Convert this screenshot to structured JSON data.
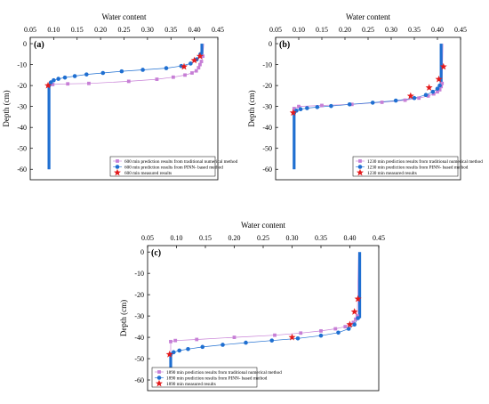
{
  "figure": {
    "background": "#ffffff",
    "colors": {
      "traditional": "#c77fd6",
      "pinn": "#1f6fd1",
      "measured": "#e31a1c",
      "axis": "#000000"
    }
  },
  "chart_data": [
    {
      "type": "scatter",
      "panel_label": "(a)",
      "xlabel": "Water content",
      "ylabel": "Depth (cm)",
      "xlim": [
        0.05,
        0.45
      ],
      "ylim": [
        -65,
        3
      ],
      "xticks": [
        "0.05",
        "0.10",
        "0.15",
        "0.20",
        "0.25",
        "0.30",
        "0.35",
        "0.40",
        "0.45"
      ],
      "yticks": [
        "0",
        "-10",
        "-20",
        "-30",
        "-40",
        "-50",
        "-60"
      ],
      "legend_position": "bottom-right",
      "series": [
        {
          "name": "600 min prediction results from traditional numerical method",
          "marker": "square",
          "x": [
            0.09,
            0.098,
            0.13,
            0.175,
            0.26,
            0.32,
            0.355,
            0.38,
            0.395,
            0.404,
            0.409,
            0.412,
            0.415,
            0.418
          ],
          "y": [
            -20,
            -19.5,
            -19.2,
            -19,
            -18,
            -17,
            -16,
            -15,
            -14,
            -13,
            -11.5,
            -10,
            -8.5,
            -6
          ]
        },
        {
          "name": "600 min prediction results from PINN- based method",
          "marker": "circle",
          "x": [
            0.09,
            0.094,
            0.1,
            0.11,
            0.124,
            0.145,
            0.17,
            0.205,
            0.245,
            0.29,
            0.34,
            0.372,
            0.392,
            0.405,
            0.413
          ],
          "y": [
            -20,
            -18.5,
            -17.5,
            -16.8,
            -16.2,
            -15.5,
            -14.7,
            -14,
            -13.2,
            -12.5,
            -11.7,
            -10.7,
            -9.5,
            -7.5,
            -5
          ]
        },
        {
          "name": "600 min measured results",
          "marker": "star",
          "x": [
            0.088,
            0.378,
            0.4,
            0.412
          ],
          "y": [
            -20,
            -11,
            -8,
            -6
          ]
        }
      ]
    },
    {
      "type": "scatter",
      "panel_label": "(b)",
      "xlabel": "Water content",
      "ylabel": "Depth (cm)",
      "xlim": [
        0.05,
        0.45
      ],
      "ylim": [
        -65,
        3
      ],
      "xticks": [
        "0.05",
        "0.10",
        "0.15",
        "0.20",
        "0.25",
        "0.30",
        "0.35",
        "0.40",
        "0.45"
      ],
      "yticks": [
        "0",
        "-10",
        "-20",
        "-30",
        "-40",
        "-50",
        "-60"
      ],
      "legend_position": "bottom-right",
      "series": [
        {
          "name": "1230 min prediction results from traditional numerical method",
          "marker": "square",
          "x": [
            0.09,
            0.1,
            0.15,
            0.215,
            0.28,
            0.33,
            0.36,
            0.38,
            0.392,
            0.4,
            0.405,
            0.408,
            0.41
          ],
          "y": [
            -31,
            -30,
            -29.5,
            -29,
            -28,
            -27,
            -26,
            -25,
            -24,
            -23,
            -22,
            -20.5,
            -19
          ]
        },
        {
          "name": "1230 min prediction results from PINN- based method",
          "marker": "circle",
          "x": [
            0.09,
            0.095,
            0.104,
            0.118,
            0.14,
            0.17,
            0.21,
            0.26,
            0.31,
            0.35,
            0.375,
            0.39,
            0.4,
            0.405
          ],
          "y": [
            -33,
            -32,
            -31.3,
            -30.8,
            -30.3,
            -29.8,
            -29,
            -28.2,
            -27.2,
            -26,
            -24.5,
            -23,
            -21.5,
            -20
          ]
        },
        {
          "name": "1230 min measured results",
          "marker": "star",
          "x": [
            0.088,
            0.342,
            0.382,
            0.403,
            0.413
          ],
          "y": [
            -33,
            -25,
            -21,
            -17,
            -11
          ]
        }
      ]
    },
    {
      "type": "scatter",
      "panel_label": "(c)",
      "xlabel": "Water content",
      "ylabel": "Depth (cm)",
      "xlim": [
        0.05,
        0.45
      ],
      "ylim": [
        -65,
        3
      ],
      "xticks": [
        "0.05",
        "0.10",
        "0.15",
        "0.20",
        "0.25",
        "0.30",
        "0.35",
        "0.40",
        "0.45"
      ],
      "yticks": [
        "0",
        "-10",
        "-20",
        "-30",
        "-40",
        "-50",
        "-60"
      ],
      "legend_position": "bottom-left",
      "series": [
        {
          "name": "1890 min prediction results from traditional numerical method",
          "marker": "square",
          "x": [
            0.09,
            0.098,
            0.135,
            0.2,
            0.27,
            0.315,
            0.35,
            0.375,
            0.392,
            0.4,
            0.406,
            0.41,
            0.413
          ],
          "y": [
            -42,
            -41.5,
            -41,
            -40,
            -39,
            -38,
            -37,
            -36,
            -35,
            -34,
            -33,
            -31.5,
            -30
          ]
        },
        {
          "name": "1890 min prediction results from PINN- based method",
          "marker": "circle",
          "x": [
            0.09,
            0.095,
            0.105,
            0.12,
            0.145,
            0.18,
            0.22,
            0.265,
            0.31,
            0.35,
            0.38,
            0.398,
            0.408,
            0.414
          ],
          "y": [
            -48,
            -47,
            -46.2,
            -45.5,
            -44.5,
            -43.5,
            -42.5,
            -41.5,
            -40.5,
            -39.2,
            -37.8,
            -36,
            -34,
            -31
          ]
        },
        {
          "name": "1890 min measured results",
          "marker": "star",
          "x": [
            0.088,
            0.3,
            0.4,
            0.408,
            0.414
          ],
          "y": [
            -48,
            -40,
            -34,
            -28,
            -22
          ]
        }
      ]
    }
  ]
}
